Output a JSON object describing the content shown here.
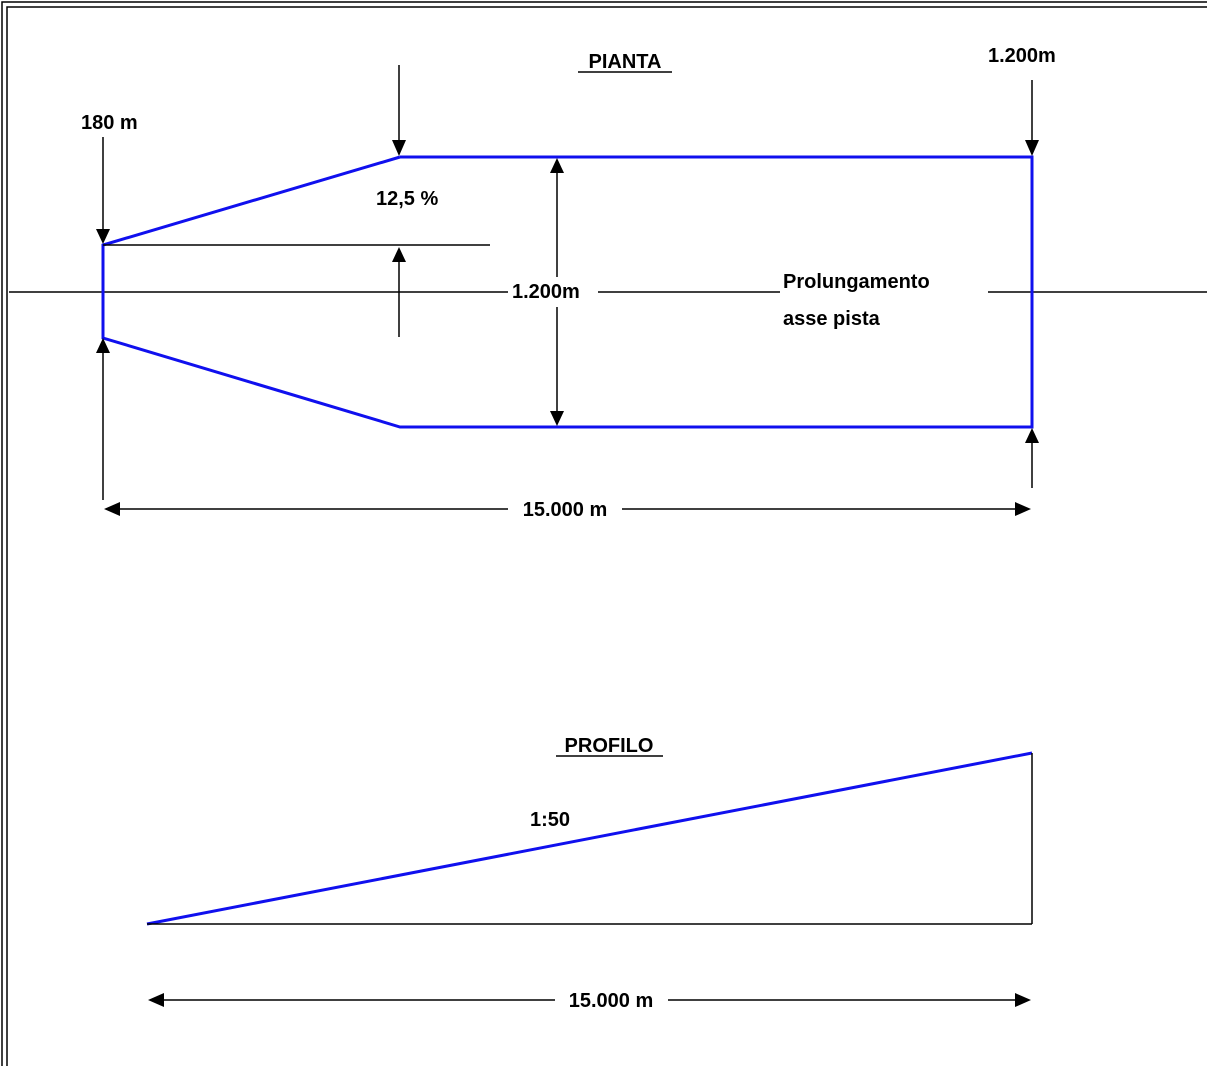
{
  "plan": {
    "title": "PIANTA",
    "width_start": "180 m",
    "width_end": "1.200m",
    "divergence": "12,5 %",
    "width_mid": "1.200m",
    "axis_label_line1": "Prolungamento",
    "axis_label_line2": "asse pista",
    "length": "15.000 m"
  },
  "profile": {
    "title": "PROFILO",
    "slope": "1:50",
    "length": "15.000 m"
  },
  "colors": {
    "surface_outline": "#1010ee",
    "dimension_lines": "#000000"
  }
}
